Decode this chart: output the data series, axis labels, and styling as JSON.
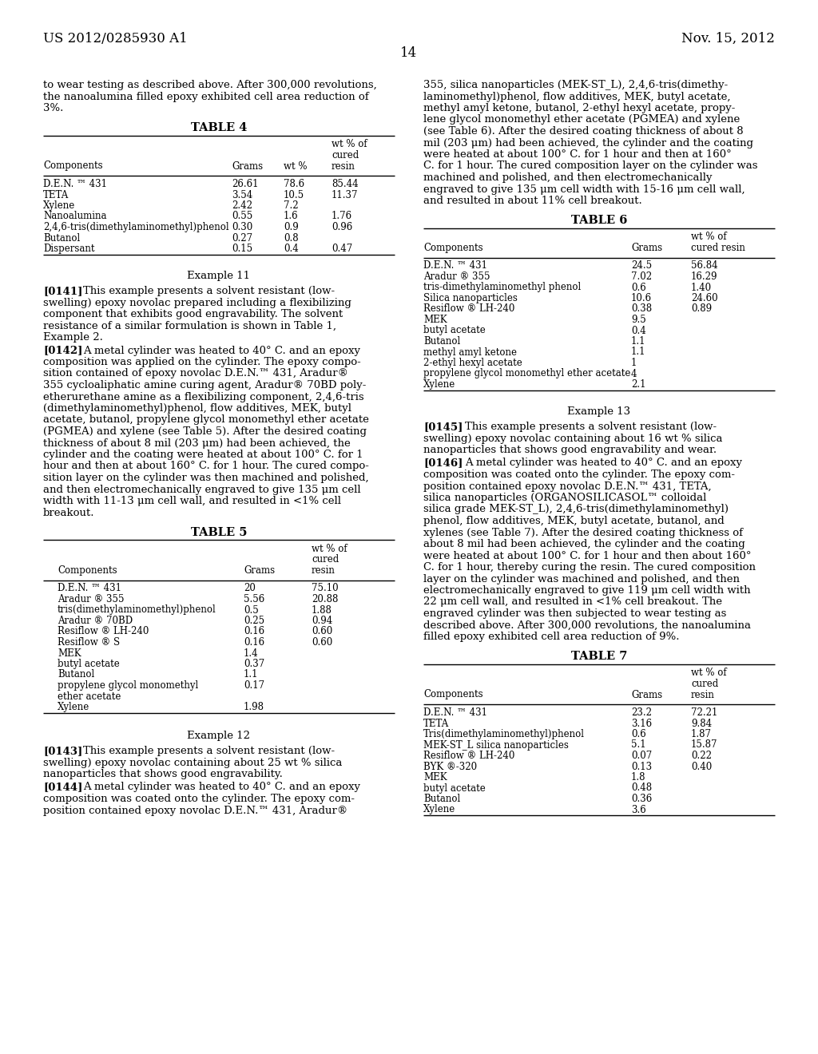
{
  "header_left": "US 2012/0285930 A1",
  "header_right": "Nov. 15, 2012",
  "page_number": "14",
  "bg": "#ffffff",
  "fg": "#000000",
  "left_intro": [
    "to wear testing as described above. After 300,000 revolutions,",
    "the nanoalumina filled epoxy exhibited cell area reduction of",
    "3%."
  ],
  "t4_title": "TABLE 4",
  "t4_rows": [
    [
      "D.E.N. ™ 431",
      "26.61",
      "78.6",
      "85.44"
    ],
    [
      "TETA",
      "3.54",
      "10.5",
      "11.37"
    ],
    [
      "Xylene",
      "2.42",
      "7.2",
      ""
    ],
    [
      "Nanoalumina",
      "0.55",
      "1.6",
      "1.76"
    ],
    [
      "2,4,6-tris(dimethylaminomethyl)phenol",
      "0.30",
      "0.9",
      "0.96"
    ],
    [
      "Butanol",
      "0.27",
      "0.8",
      ""
    ],
    [
      "Dispersant",
      "0.15",
      "0.4",
      "0.47"
    ]
  ],
  "ex11_title": "Example 11",
  "ex11_p1": [
    "[0141]    This example presents a solvent resistant (low-",
    "swelling) epoxy novolac prepared including a flexibilizing",
    "component that exhibits good engravability. The solvent",
    "resistance of a similar formulation is shown in Table 1,",
    "Example 2."
  ],
  "ex11_p2": [
    "[0142]    A metal cylinder was heated to 40° C. and an epoxy",
    "composition was applied on the cylinder. The epoxy compo-",
    "sition contained of epoxy novolac D.E.N.™ 431, Aradur®",
    "355 cycloaliphatic amine curing agent, Aradur® 70BD poly-",
    "etherurethane amine as a flexibilizing component, 2,4,6-tris",
    "(dimethylaminomethyl)phenol, flow additives, MEK, butyl",
    "acetate, butanol, propylene glycol monomethyl ether acetate",
    "(PGMEA) and xylene (see Table 5). After the desired coating",
    "thickness of about 8 mil (203 μm) had been achieved, the",
    "cylinder and the coating were heated at about 100° C. for 1",
    "hour and then at about 160° C. for 1 hour. The cured compo-",
    "sition layer on the cylinder was then machined and polished,",
    "and then electromechanically engraved to give 135 μm cell",
    "width with 11-13 μm cell wall, and resulted in <1% cell",
    "breakout."
  ],
  "t5_title": "TABLE 5",
  "t5_rows": [
    [
      "D.E.N. ™ 431",
      "20",
      "75.10"
    ],
    [
      "Aradur ® 355",
      "5.56",
      "20.88"
    ],
    [
      "tris(dimethylaminomethyl)phenol",
      "0.5",
      "1.88"
    ],
    [
      "Aradur ® 70BD",
      "0.25",
      "0.94"
    ],
    [
      "Resiflow ® LH-240",
      "0.16",
      "0.60"
    ],
    [
      "Resiflow ® S",
      "0.16",
      "0.60"
    ],
    [
      "MEK",
      "1.4",
      ""
    ],
    [
      "butyl acetate",
      "0.37",
      ""
    ],
    [
      "Butanol",
      "1.1",
      ""
    ],
    [
      "propylene glycol monomethyl",
      "0.17",
      ""
    ],
    [
      "ether acetate",
      "",
      ""
    ],
    [
      "Xylene",
      "1.98",
      ""
    ]
  ],
  "ex12_title": "Example 12",
  "ex12_p1": [
    "[0143]    This example presents a solvent resistant (low-",
    "swelling) epoxy novolac containing about 25 wt % silica",
    "nanoparticles that shows good engravability."
  ],
  "ex12_p2": [
    "[0144]    A metal cylinder was heated to 40° C. and an epoxy",
    "composition was coated onto the cylinder. The epoxy com-",
    "position contained epoxy novolac D.E.N.™ 431, Aradur®"
  ],
  "right_top": [
    "355, silica nanoparticles (MEK-ST_L), 2,4,6-tris(dimethy-",
    "laminomethyl)phenol, flow additives, MEK, butyl acetate,",
    "methyl amyl ketone, butanol, 2-ethyl hexyl acetate, propy-",
    "lene glycol monomethyl ether acetate (PGMEA) and xylene",
    "(see Table 6). After the desired coating thickness of about 8",
    "mil (203 μm) had been achieved, the cylinder and the coating",
    "were heated at about 100° C. for 1 hour and then at 160°",
    "C. for 1 hour. The cured composition layer on the cylinder was",
    "machined and polished, and then electromechanically",
    "engraved to give 135 μm cell width with 15-16 μm cell wall,",
    "and resulted in about 11% cell breakout."
  ],
  "t6_title": "TABLE 6",
  "t6_rows": [
    [
      "D.E.N. ™ 431",
      "24.5",
      "56.84"
    ],
    [
      "Aradur ® 355",
      "7.02",
      "16.29"
    ],
    [
      "tris-dimethylaminomethyl phenol",
      "0.6",
      "1.40"
    ],
    [
      "Silica nanoparticles",
      "10.6",
      "24.60"
    ],
    [
      "Resiflow ® LH-240",
      "0.38",
      "0.89"
    ],
    [
      "MEK",
      "9.5",
      ""
    ],
    [
      "butyl acetate",
      "0.4",
      ""
    ],
    [
      "Butanol",
      "1.1",
      ""
    ],
    [
      "methyl amyl ketone",
      "1.1",
      ""
    ],
    [
      "2-ethyl hexyl acetate",
      "1",
      ""
    ],
    [
      "propylene glycol monomethyl ether acetate",
      "4",
      ""
    ],
    [
      "Xylene",
      "2.1",
      ""
    ]
  ],
  "ex13_title": "Example 13",
  "ex13_p1": [
    "[0145]    This example presents a solvent resistant (low-",
    "swelling) epoxy novolac containing about 16 wt % silica",
    "nanoparticles that shows good engravability and wear."
  ],
  "ex13_p2": [
    "[0146]    A metal cylinder was heated to 40° C. and an epoxy",
    "composition was coated onto the cylinder. The epoxy com-",
    "position contained epoxy novolac D.E.N.™ 431, TETA,",
    "silica nanoparticles (ORGANOSILICASOL™ colloidal",
    "silica grade MEK-ST_L), 2,4,6-tris(dimethylaminomethyl)",
    "phenol, flow additives, MEK, butyl acetate, butanol, and",
    "xylenes (see Table 7). After the desired coating thickness of",
    "about 8 mil had been achieved, the cylinder and the coating",
    "were heated at about 100° C. for 1 hour and then about 160°",
    "C. for 1 hour, thereby curing the resin. The cured composition",
    "layer on the cylinder was machined and polished, and then",
    "electromechanically engraved to give 119 μm cell width with",
    "22 μm cell wall, and resulted in <1% cell breakout. The",
    "engraved cylinder was then subjected to wear testing as",
    "described above. After 300,000 revolutions, the nanoalumina",
    "filled epoxy exhibited cell area reduction of 9%."
  ],
  "t7_title": "TABLE 7",
  "t7_rows": [
    [
      "D.E.N. ™ 431",
      "23.2",
      "72.21"
    ],
    [
      "TETA",
      "3.16",
      "9.84"
    ],
    [
      "Tris(dimethylaminomethyl)phenol",
      "0.6",
      "1.87"
    ],
    [
      "MEK-ST_L silica nanoparticles",
      "5.1",
      "15.87"
    ],
    [
      "Resiflow ® LH-240",
      "0.07",
      "0.22"
    ],
    [
      "BYK ®-320",
      "0.13",
      "0.40"
    ],
    [
      "MEK",
      "1.8",
      ""
    ],
    [
      "butyl acetate",
      "0.48",
      ""
    ],
    [
      "Butanol",
      "0.36",
      ""
    ],
    [
      "Xylene",
      "3.6",
      ""
    ]
  ]
}
